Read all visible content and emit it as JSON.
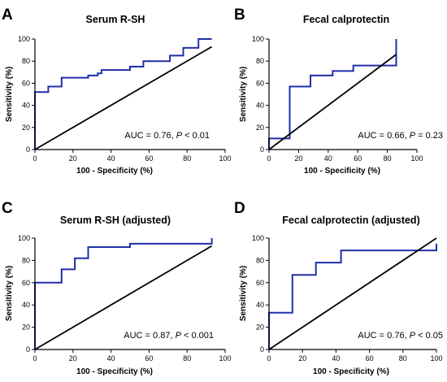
{
  "chart_data": [
    {
      "type": "line",
      "panel": "A",
      "title": "Serum R-SH",
      "xlabel": "100 - Specificity (%)",
      "ylabel": "Sensitivity (%)",
      "xlim": [
        0,
        100
      ],
      "ylim": [
        0,
        100
      ],
      "xticks": [
        0,
        20,
        40,
        60,
        80,
        100
      ],
      "yticks": [
        0,
        20,
        40,
        60,
        80,
        100
      ],
      "annotation": {
        "prefix": "AUC = 0.76,",
        "stat": "P",
        "suffix": "< 0.01"
      },
      "series": [
        {
          "values_xy": [
            [
              0,
              0
            ],
            [
              0,
              52
            ],
            [
              7,
              52
            ],
            [
              7,
              57
            ],
            [
              14,
              57
            ],
            [
              14,
              65
            ],
            [
              28,
              65
            ],
            [
              28,
              67
            ],
            [
              33,
              67
            ],
            [
              33,
              69
            ],
            [
              35,
              69
            ],
            [
              35,
              72
            ],
            [
              50,
              72
            ],
            [
              50,
              75
            ],
            [
              57,
              75
            ],
            [
              57,
              80
            ],
            [
              71,
              80
            ],
            [
              71,
              85
            ],
            [
              78,
              85
            ],
            [
              78,
              92
            ],
            [
              86,
              92
            ],
            [
              86,
              100
            ],
            [
              93,
              100
            ]
          ]
        },
        {
          "values_xy": [
            [
              0,
              0
            ],
            [
              93,
              93
            ]
          ]
        }
      ]
    },
    {
      "type": "line",
      "panel": "B",
      "title": "Fecal calprotectin",
      "xlabel": "100 - Specificity (%)",
      "ylabel": "Sensitivity (%)",
      "xlim": [
        0,
        100
      ],
      "ylim": [
        0,
        100
      ],
      "xticks": [
        0,
        20,
        40,
        60,
        80,
        100
      ],
      "yticks": [
        0,
        20,
        40,
        60,
        80,
        100
      ],
      "annotation": {
        "prefix": "AUC = 0.66,",
        "stat": "P",
        "suffix": "= 0.23"
      },
      "series": [
        {
          "values_xy": [
            [
              0,
              0
            ],
            [
              0,
              10
            ],
            [
              14,
              10
            ],
            [
              14,
              57
            ],
            [
              28,
              57
            ],
            [
              28,
              67
            ],
            [
              43,
              67
            ],
            [
              43,
              71
            ],
            [
              57,
              71
            ],
            [
              57,
              76
            ],
            [
              86,
              76
            ],
            [
              86,
              100
            ]
          ]
        },
        {
          "values_xy": [
            [
              0,
              0
            ],
            [
              86,
              86
            ]
          ]
        }
      ]
    },
    {
      "type": "line",
      "panel": "C",
      "title": "Serum R-SH (adjusted)",
      "xlabel": "100 - Specificity (%)",
      "ylabel": "Sensitivity (%)",
      "xlim": [
        0,
        100
      ],
      "ylim": [
        0,
        100
      ],
      "xticks": [
        0,
        20,
        40,
        60,
        80,
        100
      ],
      "yticks": [
        0,
        20,
        40,
        60,
        80,
        100
      ],
      "annotation": {
        "prefix": "AUC = 0.87,",
        "stat": "P",
        "suffix": "< 0.001"
      },
      "series": [
        {
          "values_xy": [
            [
              0,
              0
            ],
            [
              0,
              60
            ],
            [
              14,
              60
            ],
            [
              14,
              72
            ],
            [
              21,
              72
            ],
            [
              21,
              82
            ],
            [
              28,
              82
            ],
            [
              28,
              92
            ],
            [
              50,
              92
            ],
            [
              50,
              95
            ],
            [
              93,
              95
            ],
            [
              93,
              100
            ]
          ]
        },
        {
          "values_xy": [
            [
              0,
              0
            ],
            [
              93,
              93
            ]
          ]
        }
      ]
    },
    {
      "type": "line",
      "panel": "D",
      "title": "Fecal calprotectin (adjusted)",
      "xlabel": "100 - Specificity (%)",
      "ylabel": "Sensitivity (%)",
      "xlim": [
        0,
        100
      ],
      "ylim": [
        0,
        100
      ],
      "xticks": [
        0,
        20,
        40,
        60,
        80,
        100
      ],
      "yticks": [
        0,
        20,
        40,
        60,
        80,
        100
      ],
      "annotation": {
        "prefix": "AUC = 0.76,",
        "stat": "P",
        "suffix": "< 0.05"
      },
      "series": [
        {
          "values_xy": [
            [
              0,
              0
            ],
            [
              0,
              33
            ],
            [
              14,
              33
            ],
            [
              14,
              67
            ],
            [
              28,
              67
            ],
            [
              28,
              78
            ],
            [
              43,
              78
            ],
            [
              43,
              89
            ],
            [
              100,
              89
            ],
            [
              100,
              95
            ]
          ]
        },
        {
          "values_xy": [
            [
              0,
              0
            ],
            [
              100,
              100
            ]
          ]
        }
      ]
    }
  ],
  "colors": {
    "roc": "#1f2fa8",
    "reference": "#000000"
  }
}
